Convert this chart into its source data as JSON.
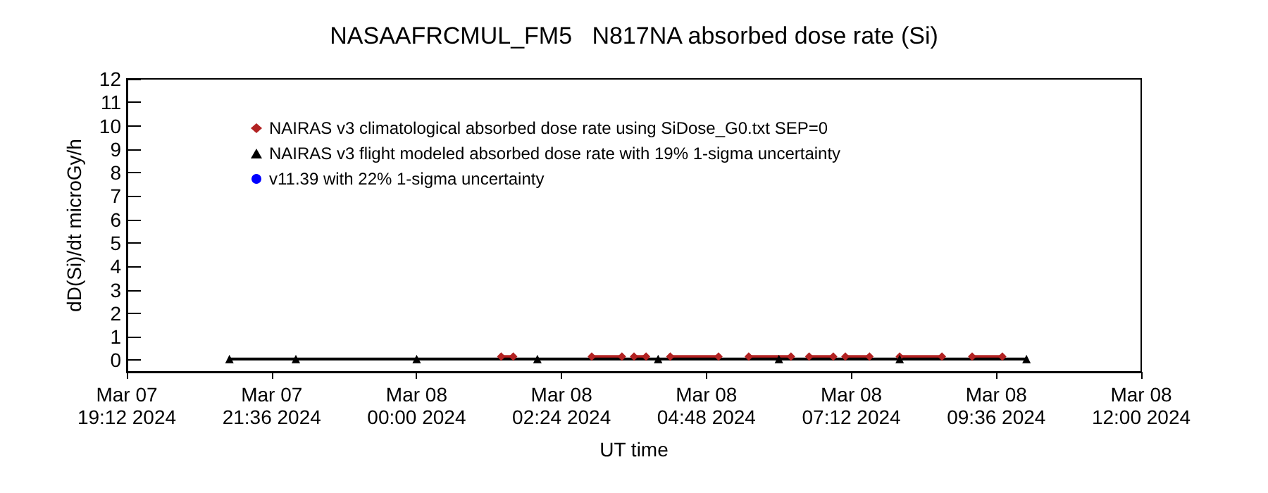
{
  "chart_data": {
    "type": "line",
    "title": "NASAAFRCMUL_FM5   N817NA absorbed dose rate (Si)",
    "xlabel": "UT time",
    "ylabel": "dD(Si)/dt microGy/h",
    "xlim": [
      "2024-03-07T19:12",
      "2024-03-08T12:00"
    ],
    "xticks": [
      {
        "value": "2024-03-07T19:12",
        "label": "Mar 07\n19:12 2024"
      },
      {
        "value": "2024-03-07T21:36",
        "label": "Mar 07\n21:36 2024"
      },
      {
        "value": "2024-03-08T00:00",
        "label": "Mar 08\n00:00 2024"
      },
      {
        "value": "2024-03-08T02:24",
        "label": "Mar 08\n02:24 2024"
      },
      {
        "value": "2024-03-08T04:48",
        "label": "Mar 08\n04:48 2024"
      },
      {
        "value": "2024-03-08T07:12",
        "label": "Mar 08\n07:12 2024"
      },
      {
        "value": "2024-03-08T09:36",
        "label": "Mar 08\n09:36 2024"
      },
      {
        "value": "2024-03-08T12:00",
        "label": "Mar 08\n12:00 2024"
      }
    ],
    "ylim": [
      -0.5,
      12
    ],
    "yticks": [
      0,
      1,
      2,
      3,
      4,
      5,
      6,
      7,
      8,
      9,
      10,
      11,
      12
    ],
    "legend": "top left",
    "series": [
      {
        "name": "NAIRAS v3 climatological absorbed dose rate using SiDose_G0.txt SEP=0",
        "color": "#b22222",
        "marker": "diamond",
        "x": [
          "2024-03-08T01:24",
          "2024-03-08T01:36",
          "2024-03-08T01:42",
          "2024-03-08T02:54",
          "2024-03-08T03:24",
          "2024-03-08T03:30",
          "2024-03-08T03:36",
          "2024-03-08T03:48",
          "2024-03-08T03:54",
          "2024-03-08T04:12",
          "2024-03-08T05:00",
          "2024-03-08T05:12",
          "2024-03-08T05:30",
          "2024-03-08T06:12",
          "2024-03-08T06:18",
          "2024-03-08T06:30",
          "2024-03-08T06:54",
          "2024-03-08T07:00",
          "2024-03-08T07:06",
          "2024-03-08T07:30",
          "2024-03-08T07:42",
          "2024-03-08T08:00",
          "2024-03-08T08:42",
          "2024-03-08T08:54",
          "2024-03-08T09:12",
          "2024-03-08T09:42"
        ],
        "values": [
          0.15,
          0.15,
          null,
          0.15,
          0.15,
          null,
          0.15,
          0.15,
          null,
          0.15,
          0.15,
          null,
          0.15,
          0.15,
          null,
          0.15,
          0.15,
          null,
          0.15,
          0.15,
          null,
          0.15,
          0.15,
          null,
          0.15,
          0.15
        ]
      },
      {
        "name": "NAIRAS v3 flight modeled absorbed dose rate with 19% 1-sigma uncertainty",
        "color": "#000000",
        "marker": "triangle",
        "x": [
          "2024-03-07T20:54",
          "2024-03-07T22:00",
          "2024-03-08T00:00",
          "2024-03-08T02:00",
          "2024-03-08T04:00",
          "2024-03-08T06:00",
          "2024-03-08T08:00",
          "2024-03-08T10:06"
        ],
        "values": [
          0.05,
          0.05,
          0.05,
          0.05,
          0.05,
          0.05,
          0.05,
          0.05
        ]
      },
      {
        "name": "v11.39 with 22% 1-sigma uncertainty",
        "color": "#0000ff",
        "marker": "circle"
      }
    ]
  }
}
